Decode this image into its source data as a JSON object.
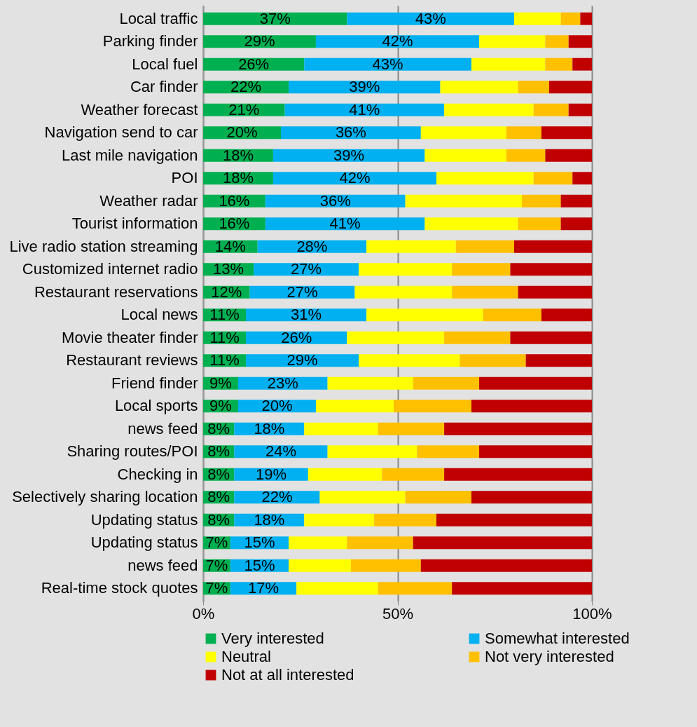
{
  "chart_data": {
    "type": "bar",
    "orientation": "horizontal",
    "stacked": true,
    "categories": [
      "Local traffic",
      "Parking finder",
      "Local fuel",
      "Car finder",
      "Weather forecast",
      "Navigation send to car",
      "Last mile navigation",
      "POI",
      "Weather radar",
      "Tourist information",
      "Live radio station streaming",
      "Customized internet radio",
      "Restaurant reservations",
      "Local news",
      "Movie theater finder",
      "Restaurant reviews",
      "Friend finder",
      "Local sports",
      "news feed",
      "Sharing routes/POI",
      "Checking in",
      "Selectively sharing  location",
      "Updating status",
      "Updating status",
      "news feed",
      "Real-time stock quotes"
    ],
    "series": [
      {
        "name": "Very interested",
        "color": "#00b050",
        "values": [
          37,
          29,
          26,
          22,
          21,
          20,
          18,
          18,
          16,
          16,
          14,
          13,
          12,
          11,
          11,
          11,
          9,
          9,
          8,
          8,
          8,
          8,
          8,
          7,
          7,
          7
        ],
        "value_labels": [
          "37%",
          "29%",
          "26%",
          "22%",
          "21%",
          "20%",
          "18%",
          "18%",
          "16%",
          "16%",
          "14%",
          "13%",
          "12%",
          "11%",
          "11%",
          "11%",
          "9%",
          "9%",
          "8%",
          "8%",
          "8%",
          "8%",
          "8%",
          "7%",
          "7%",
          "7%"
        ]
      },
      {
        "name": "Somewhat interested",
        "color": "#00b0f0",
        "values": [
          43,
          42,
          43,
          39,
          41,
          36,
          39,
          42,
          36,
          41,
          28,
          27,
          27,
          31,
          26,
          29,
          23,
          20,
          18,
          24,
          19,
          22,
          18,
          15,
          15,
          17
        ],
        "value_labels": [
          "43%",
          "42%",
          "43%",
          "39%",
          "41%",
          "36%",
          "39%",
          "42%",
          "36%",
          "41%",
          "28%",
          "27%",
          "27%",
          "31%",
          "26%",
          "29%",
          "23%",
          "20%",
          "18%",
          "24%",
          "19%",
          "22%",
          "18%",
          "15%",
          "15%",
          "17%"
        ]
      },
      {
        "name": "Neutral",
        "color": "#ffff00",
        "values": [
          12,
          17,
          19,
          20,
          23,
          22,
          21,
          25,
          30,
          24,
          23,
          24,
          25,
          30,
          25,
          26,
          22,
          20,
          19,
          23,
          19,
          22,
          18,
          15,
          16,
          21
        ]
      },
      {
        "name": "Not very interested",
        "color": "#ffc000",
        "values": [
          5,
          6,
          7,
          8,
          9,
          9,
          10,
          10,
          10,
          11,
          15,
          15,
          17,
          15,
          17,
          17,
          17,
          20,
          17,
          16,
          16,
          17,
          16,
          17,
          18,
          19
        ]
      },
      {
        "name": "Not at all interested",
        "color": "#c00000",
        "values": [
          3,
          6,
          5,
          11,
          6,
          13,
          12,
          5,
          8,
          8,
          20,
          21,
          19,
          13,
          21,
          17,
          29,
          31,
          38,
          29,
          38,
          31,
          40,
          46,
          44,
          36
        ]
      }
    ],
    "xlim": [
      0,
      100
    ],
    "xticks": [
      {
        "value": 0,
        "label": "0%"
      },
      {
        "value": 50,
        "label": "50%"
      },
      {
        "value": 100,
        "label": "100%"
      }
    ],
    "grid": "x",
    "legend": "bottom"
  }
}
